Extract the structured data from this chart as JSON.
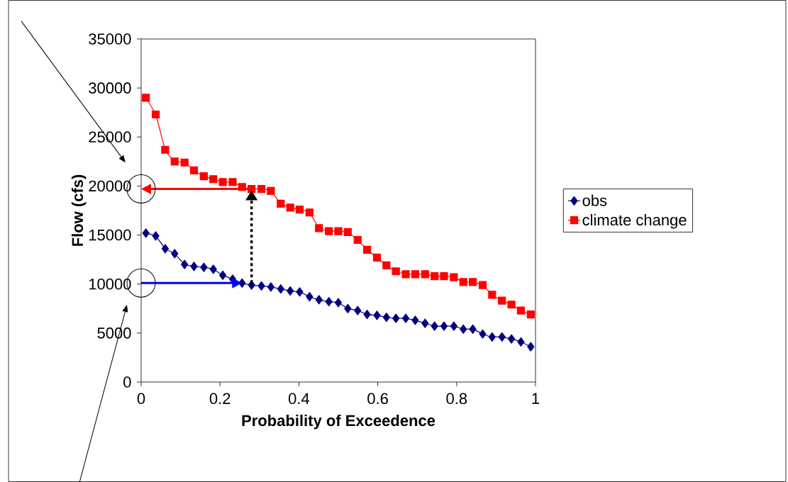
{
  "chart_data": {
    "type": "line",
    "xlabel": "Probability of Exceedence",
    "ylabel": "Flow (cfs)",
    "xlim": [
      0,
      1
    ],
    "ylim": [
      0,
      35000
    ],
    "xticks": [
      0,
      0.2,
      0.4,
      0.6,
      0.8,
      1
    ],
    "yticks": [
      0,
      5000,
      10000,
      15000,
      20000,
      25000,
      30000,
      35000
    ],
    "legend": "right",
    "x": [
      0.012,
      0.037,
      0.061,
      0.085,
      0.11,
      0.134,
      0.159,
      0.183,
      0.207,
      0.232,
      0.256,
      0.28,
      0.305,
      0.329,
      0.354,
      0.378,
      0.402,
      0.427,
      0.451,
      0.476,
      0.5,
      0.524,
      0.549,
      0.573,
      0.598,
      0.622,
      0.646,
      0.671,
      0.695,
      0.72,
      0.744,
      0.768,
      0.793,
      0.817,
      0.841,
      0.866,
      0.89,
      0.915,
      0.939,
      0.963,
      0.988
    ],
    "series": [
      {
        "name": "obs",
        "color": "#000080",
        "marker": "diamond",
        "values": [
          15200,
          14900,
          13600,
          13100,
          12000,
          11800,
          11700,
          11500,
          10900,
          10500,
          10100,
          9900,
          9800,
          9700,
          9500,
          9300,
          9200,
          8700,
          8400,
          8200,
          8100,
          7500,
          7300,
          6900,
          6800,
          6600,
          6500,
          6500,
          6300,
          6000,
          5700,
          5700,
          5700,
          5400,
          5400,
          4900,
          4600,
          4600,
          4400,
          4100,
          3600
        ]
      },
      {
        "name": "climate change",
        "color": "#ff0000",
        "marker": "square",
        "values": [
          29000,
          27300,
          23700,
          22500,
          22400,
          21600,
          21000,
          20700,
          20400,
          20400,
          19900,
          19700,
          19700,
          19500,
          18200,
          17800,
          17600,
          17300,
          15700,
          15400,
          15400,
          15300,
          14500,
          13500,
          12700,
          11900,
          11300,
          11000,
          11000,
          11000,
          10800,
          10800,
          10700,
          10200,
          10200,
          9900,
          8900,
          8300,
          7900,
          7300,
          6900
        ]
      }
    ]
  }
}
